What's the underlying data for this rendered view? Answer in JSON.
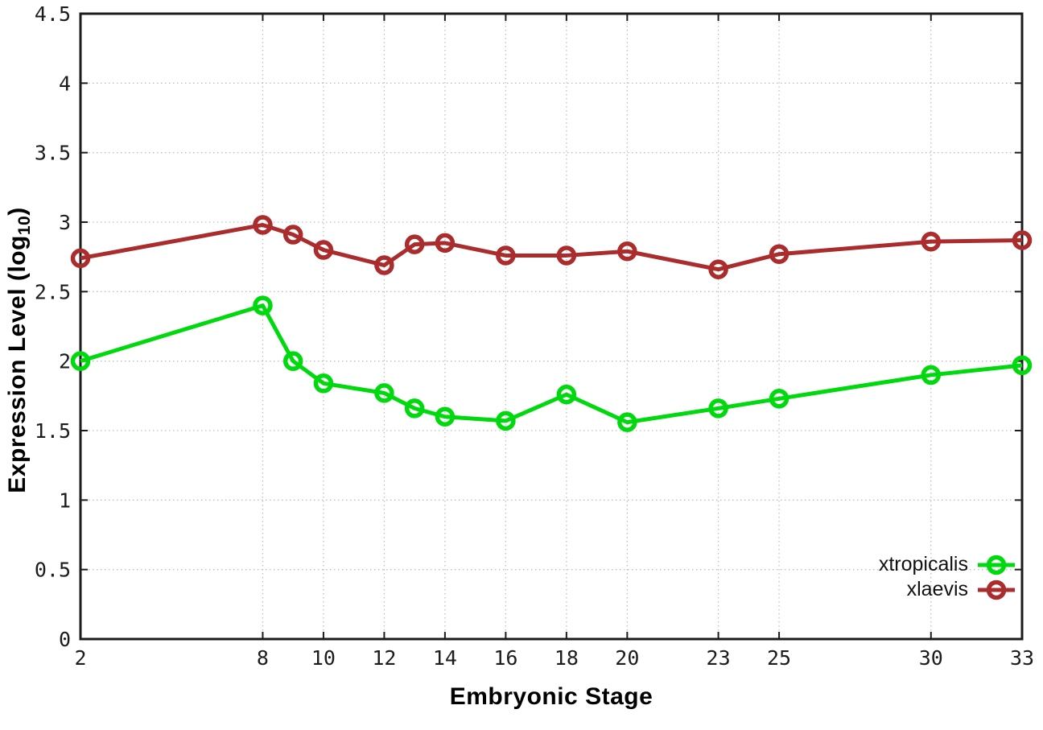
{
  "chart_data": {
    "type": "line",
    "x": [
      2,
      8,
      9,
      10,
      12,
      13,
      14,
      16,
      18,
      20,
      23,
      25,
      30,
      33
    ],
    "series": [
      {
        "name": "xtropicalis",
        "color": "#00d90e",
        "values": [
          2.0,
          2.4,
          2.0,
          1.84,
          1.77,
          1.66,
          1.6,
          1.57,
          1.76,
          1.56,
          1.66,
          1.73,
          1.9,
          1.97
        ]
      },
      {
        "name": "xlaevis",
        "color": "#ab2c2c",
        "values": [
          2.74,
          2.98,
          2.91,
          2.8,
          2.69,
          2.84,
          2.85,
          2.76,
          2.76,
          2.79,
          2.66,
          2.77,
          2.86,
          2.87
        ]
      }
    ],
    "title": "",
    "xlabel": "Embryonic Stage",
    "ylabel": {
      "prefix": "Expression Level (log",
      "subscript": "10",
      "suffix": ")"
    },
    "xlim": [
      2,
      33
    ],
    "ylim": [
      0,
      4.5
    ],
    "x_ticks": {
      "values": [
        2,
        8,
        10,
        12,
        14,
        16,
        18,
        20,
        23,
        25,
        30,
        33
      ],
      "labels": [
        "2",
        "8",
        "10",
        "12",
        "14",
        "16",
        "18",
        "20",
        "23",
        "25",
        "30",
        "33"
      ]
    },
    "y_ticks": {
      "values": [
        0,
        0.5,
        1,
        1.5,
        2,
        2.5,
        3,
        3.5,
        4,
        4.5
      ],
      "labels": [
        "0",
        "0.5",
        "1",
        "1.5",
        "2",
        "2.5",
        "3",
        "3.5",
        "4",
        "4.5"
      ]
    },
    "grid": "dotted",
    "legend_position": "inside-bottom-right",
    "marker": "open-circle"
  },
  "style": {
    "background": "#ffffff",
    "border_color": "#1c1c1c",
    "grid_color": "#bfbfbf",
    "line_width": 5,
    "marker_radius": 9.5,
    "marker_stroke": 5.5
  }
}
